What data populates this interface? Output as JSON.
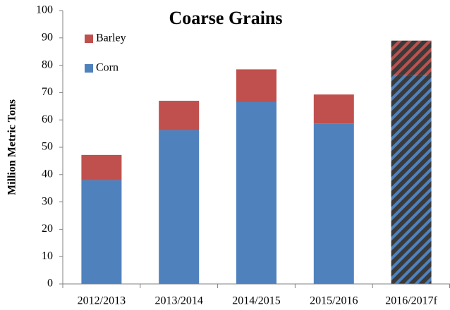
{
  "chart_data": {
    "type": "stacked_bar",
    "title": "Coarse Grains",
    "y_label": "Million Metric Tons",
    "categories": [
      "2012/2013",
      "2013/2014",
      "2014/2015",
      "2015/2016",
      "2016/2017f"
    ],
    "series": [
      {
        "name": "Corn",
        "color": "#4f81bd",
        "values": [
          38,
          56.3,
          66.5,
          58.7,
          76.5
        ]
      },
      {
        "name": "Barley",
        "color": "#c0504d",
        "values": [
          9.2,
          10.7,
          12,
          10.6,
          12.5
        ]
      }
    ],
    "hatched": [
      false,
      false,
      false,
      false,
      true
    ],
    "ylim": [
      0,
      100
    ],
    "yticks": [
      0,
      10,
      20,
      30,
      40,
      50,
      60,
      70,
      80,
      90,
      100
    ],
    "grid": false,
    "legend": "upper left"
  }
}
